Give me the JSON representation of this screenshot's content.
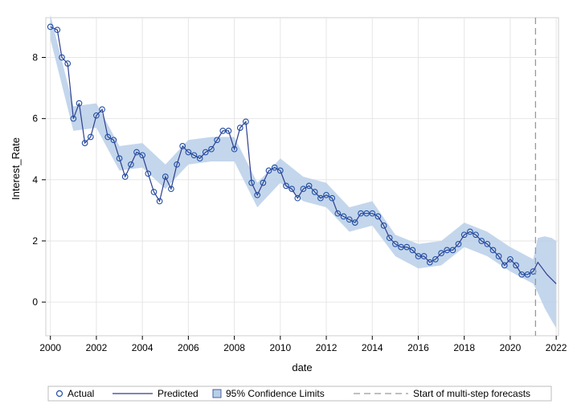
{
  "chart_data": {
    "type": "line",
    "title": "",
    "xlabel": "date",
    "ylabel": "Interest_Rate",
    "xlim": [
      1999.8,
      2022.1
    ],
    "ylim": [
      -1.1,
      9.3
    ],
    "x_ticks": [
      2000,
      2002,
      2004,
      2006,
      2008,
      2010,
      2012,
      2014,
      2016,
      2018,
      2020,
      2022
    ],
    "x_tick_labels": [
      "2000",
      "2002",
      "2004",
      "2006",
      "2008",
      "2010",
      "2012",
      "2014",
      "2016",
      "2018",
      "2020",
      "2022"
    ],
    "y_ticks": [
      0,
      2,
      4,
      6,
      8
    ],
    "y_tick_labels": [
      "0",
      "2",
      "4",
      "6",
      "8"
    ],
    "grid": true,
    "forecast_start": 2021.1,
    "legend_position": "bottom",
    "legend": {
      "actual": "Actual",
      "predicted": "Predicted",
      "confidence": "95% Confidence Limits",
      "forecast_line": "Start of multi-step forecasts"
    },
    "colors": {
      "marker": "#1f4ea6",
      "predicted_line": "#2f3e8c",
      "band": "#b8cfe9",
      "reference_line": "#999999",
      "grid": "#e6e6e6"
    },
    "actual": {
      "x": [
        2000.0,
        2000.3,
        2000.5,
        2000.75,
        2001.0,
        2001.25,
        2001.5,
        2001.75,
        2002.0,
        2002.25,
        2002.5,
        2002.75,
        2003.0,
        2003.25,
        2003.5,
        2003.75,
        2004.0,
        2004.25,
        2004.5,
        2004.75,
        2005.0,
        2005.25,
        2005.5,
        2005.75,
        2006.0,
        2006.25,
        2006.5,
        2006.75,
        2007.0,
        2007.25,
        2007.5,
        2007.75,
        2008.0,
        2008.25,
        2008.5,
        2008.75,
        2009.0,
        2009.25,
        2009.5,
        2009.75,
        2010.0,
        2010.25,
        2010.5,
        2010.75,
        2011.0,
        2011.25,
        2011.5,
        2011.75,
        2012.0,
        2012.25,
        2012.5,
        2012.75,
        2013.0,
        2013.25,
        2013.5,
        2013.75,
        2014.0,
        2014.25,
        2014.5,
        2014.75,
        2015.0,
        2015.25,
        2015.5,
        2015.75,
        2016.0,
        2016.25,
        2016.5,
        2016.75,
        2017.0,
        2017.25,
        2017.5,
        2017.75,
        2018.0,
        2018.25,
        2018.5,
        2018.75,
        2019.0,
        2019.25,
        2019.5,
        2019.75,
        2020.0,
        2020.25,
        2020.5,
        2020.75,
        2021.0
      ],
      "y": [
        9.0,
        8.9,
        8.0,
        7.8,
        6.0,
        6.5,
        5.2,
        5.4,
        6.1,
        6.3,
        5.4,
        5.3,
        4.7,
        4.1,
        4.5,
        4.9,
        4.8,
        4.2,
        3.6,
        3.3,
        4.1,
        3.7,
        4.5,
        5.1,
        4.9,
        4.8,
        4.7,
        4.9,
        5.0,
        5.3,
        5.6,
        5.6,
        5.0,
        5.7,
        5.9,
        3.9,
        3.5,
        3.9,
        4.3,
        4.4,
        4.3,
        3.8,
        3.7,
        3.4,
        3.7,
        3.8,
        3.6,
        3.4,
        3.5,
        3.4,
        2.9,
        2.8,
        2.7,
        2.6,
        2.9,
        2.9,
        2.9,
        2.8,
        2.5,
        2.1,
        1.9,
        1.8,
        1.8,
        1.7,
        1.5,
        1.5,
        1.3,
        1.4,
        1.6,
        1.7,
        1.7,
        1.9,
        2.2,
        2.3,
        2.2,
        2.0,
        1.9,
        1.7,
        1.5,
        1.2,
        1.4,
        1.2,
        0.9,
        0.9,
        1.0
      ]
    },
    "predicted": {
      "x": [
        2000.0,
        2000.3,
        2000.5,
        2000.75,
        2001.0,
        2001.25,
        2001.5,
        2001.75,
        2002.0,
        2002.25,
        2002.5,
        2002.75,
        2003.0,
        2003.25,
        2003.5,
        2003.75,
        2004.0,
        2004.25,
        2004.5,
        2004.75,
        2005.0,
        2005.25,
        2005.5,
        2005.75,
        2006.0,
        2006.25,
        2006.5,
        2006.75,
        2007.0,
        2007.25,
        2007.5,
        2007.75,
        2008.0,
        2008.25,
        2008.5,
        2008.75,
        2009.0,
        2009.25,
        2009.5,
        2009.75,
        2010.0,
        2010.25,
        2010.5,
        2010.75,
        2011.0,
        2011.25,
        2011.5,
        2011.75,
        2012.0,
        2012.25,
        2012.5,
        2012.75,
        2013.0,
        2013.25,
        2013.5,
        2013.75,
        2014.0,
        2014.25,
        2014.5,
        2014.75,
        2015.0,
        2015.25,
        2015.5,
        2015.75,
        2016.0,
        2016.25,
        2016.5,
        2016.75,
        2017.0,
        2017.25,
        2017.5,
        2017.75,
        2018.0,
        2018.25,
        2018.5,
        2018.75,
        2019.0,
        2019.25,
        2019.5,
        2019.75,
        2020.0,
        2020.25,
        2020.5,
        2020.75,
        2021.0,
        2021.2,
        2021.4,
        2021.6,
        2021.8,
        2022.0
      ],
      "y": [
        9.0,
        8.9,
        8.0,
        7.8,
        6.0,
        6.5,
        5.2,
        5.4,
        6.1,
        6.3,
        5.4,
        5.3,
        4.7,
        4.1,
        4.5,
        4.9,
        4.8,
        4.2,
        3.6,
        3.3,
        4.1,
        3.7,
        4.5,
        5.1,
        4.9,
        4.8,
        4.7,
        4.9,
        5.0,
        5.3,
        5.6,
        5.6,
        5.0,
        5.7,
        5.9,
        3.9,
        3.5,
        3.9,
        4.3,
        4.4,
        4.3,
        3.8,
        3.7,
        3.4,
        3.7,
        3.8,
        3.6,
        3.4,
        3.5,
        3.4,
        2.9,
        2.8,
        2.7,
        2.6,
        2.9,
        2.9,
        2.9,
        2.8,
        2.5,
        2.1,
        1.9,
        1.8,
        1.8,
        1.7,
        1.5,
        1.5,
        1.3,
        1.4,
        1.6,
        1.7,
        1.7,
        1.9,
        2.2,
        2.3,
        2.2,
        2.0,
        1.9,
        1.7,
        1.5,
        1.2,
        1.4,
        1.2,
        0.9,
        0.9,
        1.0,
        1.3,
        1.1,
        0.9,
        0.75,
        0.6
      ]
    },
    "confidence_band": {
      "x": [
        2000.0,
        2001.0,
        2002.0,
        2003.0,
        2004.0,
        2005.0,
        2006.0,
        2007.0,
        2008.0,
        2009.0,
        2010.0,
        2011.0,
        2012.0,
        2013.0,
        2014.0,
        2015.0,
        2016.0,
        2017.0,
        2018.0,
        2019.0,
        2020.0,
        2021.0,
        2021.2,
        2021.5,
        2021.8,
        2022.0
      ],
      "lower": [
        8.6,
        5.6,
        5.7,
        4.3,
        4.4,
        3.7,
        4.5,
        4.6,
        4.6,
        3.1,
        3.9,
        3.3,
        3.1,
        2.3,
        2.5,
        1.5,
        1.1,
        1.2,
        1.8,
        1.5,
        1.0,
        0.6,
        0.3,
        -0.2,
        -0.6,
        -0.85
      ],
      "upper": [
        9.4,
        6.4,
        6.5,
        5.1,
        5.2,
        4.5,
        5.3,
        5.4,
        5.4,
        3.9,
        4.7,
        4.1,
        3.9,
        3.1,
        3.3,
        2.2,
        1.9,
        2.0,
        2.6,
        2.3,
        1.8,
        1.4,
        2.1,
        2.15,
        2.1,
        2.0
      ]
    }
  }
}
